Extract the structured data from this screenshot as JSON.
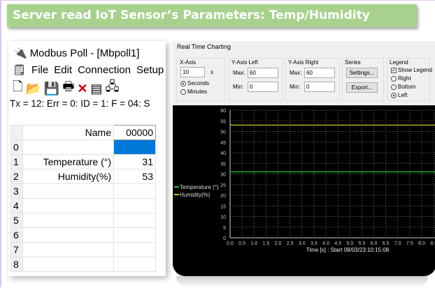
{
  "title": "Server read IoT Sensor’s Parameters: Temp/Humidity",
  "modbus": {
    "window_title": "Modbus Poll - [Mbpoll1]",
    "menu": [
      "File",
      "Edit",
      "Connection",
      "Setup",
      "F"
    ],
    "status": "Tx = 12: Err = 0: ID = 1: F = 04: S",
    "columns": [
      "Name",
      "00000"
    ],
    "rows": [
      {
        "i": "0",
        "name": "",
        "value": ""
      },
      {
        "i": "1",
        "name": "Temperature (°)",
        "value": "31"
      },
      {
        "i": "2",
        "name": "Humidity(%)",
        "value": "53"
      },
      {
        "i": "3",
        "name": "",
        "value": ""
      },
      {
        "i": "4",
        "name": "",
        "value": ""
      },
      {
        "i": "5",
        "name": "",
        "value": ""
      },
      {
        "i": "6",
        "name": "",
        "value": ""
      },
      {
        "i": "7",
        "name": "",
        "value": ""
      },
      {
        "i": "8",
        "name": "",
        "value": ""
      }
    ],
    "selected_color": "#0078d7"
  },
  "rtc": {
    "window_title": "Real Time Charting",
    "xaxis": {
      "label": "X-Axis",
      "value": "10",
      "unit": "s",
      "seconds": "Seconds",
      "minutes": "Minutes"
    },
    "yleft": {
      "label": "Y-Axis Left",
      "max_label": "Max:",
      "max": "60",
      "min_label": "Min:",
      "min": "0"
    },
    "yright": {
      "label": "Y-Axis Right",
      "max_label": "Max:",
      "max": "60",
      "min_label": "Min:",
      "min": "0"
    },
    "series": {
      "label": "Series",
      "settings": "Settings...",
      "export": "Export..."
    },
    "legend": {
      "label": "Legend",
      "show": "Show Legend",
      "right": "Right",
      "bottom": "Bottom",
      "left": "Left"
    }
  },
  "chart_data": {
    "type": "line",
    "xlabel": "Time [s] : Start 08/03/23:10:15:08",
    "ylim": [
      0,
      60
    ],
    "xlim": [
      0,
      10
    ],
    "grid": true,
    "legend_placement": "left",
    "xticks": [
      "0.0",
      "0.5",
      "1.0",
      "1.5",
      "2.0",
      "2.5",
      "3.0",
      "3.5",
      "4.0",
      "4.5",
      "5.0",
      "5.5",
      "6.0",
      "6.5",
      "7.0",
      "7.5",
      "8.0",
      "8.5"
    ],
    "yticks": [
      "0",
      "5",
      "10",
      "15",
      "20",
      "25",
      "30",
      "35",
      "40",
      "45",
      "50",
      "55",
      "60"
    ],
    "series": [
      {
        "name": "Temperature (°)",
        "color": "#22b822",
        "x": [
          0,
          10
        ],
        "y": [
          31,
          31
        ]
      },
      {
        "name": "Humidity(%)",
        "color": "#c8c820",
        "x": [
          0,
          10
        ],
        "y": [
          53,
          53
        ]
      }
    ]
  }
}
